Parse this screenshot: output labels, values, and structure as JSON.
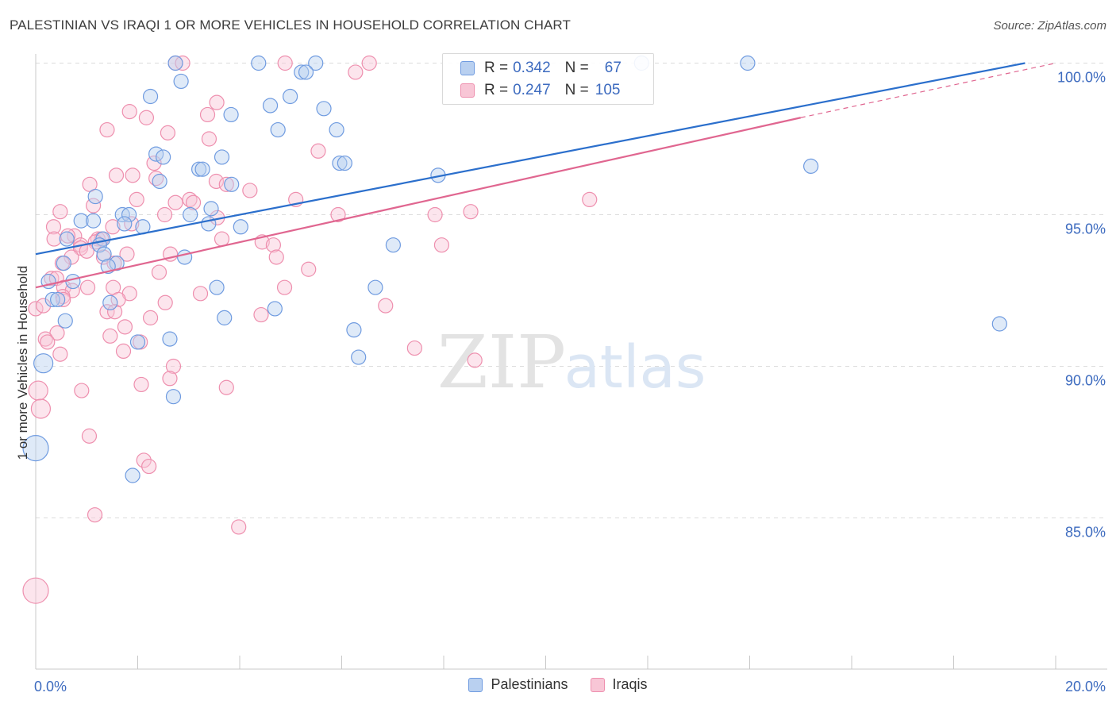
{
  "title": "PALESTINIAN VS IRAQI 1 OR MORE VEHICLES IN HOUSEHOLD CORRELATION CHART",
  "source": "Source: ZipAtlas.com",
  "watermark": {
    "zip": "ZIP",
    "atlas": "atlas"
  },
  "colors": {
    "blue_fill": "#b9d0f0",
    "blue_stroke": "#6f9be0",
    "blue_line": "#2b6fcc",
    "pink_fill": "#f8c6d6",
    "pink_stroke": "#ee8fae",
    "pink_line": "#e06690",
    "tick_label": "#3d6bbf",
    "grid": "#dcdcdc"
  },
  "legend": {
    "rows": [
      {
        "r_label": "R =",
        "r_value": "0.342",
        "n_label": "N =",
        "n_value": "67"
      },
      {
        "r_label": "R =",
        "r_value": "0.247",
        "n_label": "N =",
        "n_value": "105"
      }
    ]
  },
  "bottom_legend": {
    "series1": "Palestinians",
    "series2": "Iraqis"
  },
  "chart_data": {
    "type": "scatter",
    "title": "PALESTINIAN VS IRAQI 1 OR MORE VEHICLES IN HOUSEHOLD CORRELATION CHART",
    "xlabel": "",
    "ylabel": "1 or more Vehicles in Household",
    "xlim": [
      0,
      20
    ],
    "ylim": [
      80.5,
      100.6
    ],
    "x_tick_labels": [
      "0.0%",
      "20.0%"
    ],
    "y_ticks": [
      85,
      90,
      95,
      100
    ],
    "y_tick_labels": [
      "85.0%",
      "90.0%",
      "95.0%",
      "100.0%"
    ],
    "x_minor_ticks": [
      0,
      2,
      4,
      6,
      8,
      10,
      12,
      14,
      16,
      18,
      20
    ],
    "series": [
      {
        "name": "Palestinians",
        "color": "blue",
        "trend": {
          "x1": 0,
          "y1": 93.7,
          "x2": 19.4,
          "y2": 100.0
        },
        "points": [
          {
            "x": 2.74,
            "y": 100.0
          },
          {
            "x": 4.37,
            "y": 100.0
          },
          {
            "x": 5.49,
            "y": 100.0
          },
          {
            "x": 11.88,
            "y": 100.0
          },
          {
            "x": 13.96,
            "y": 100.0
          },
          {
            "x": 5.21,
            "y": 99.7
          },
          {
            "x": 5.3,
            "y": 99.7
          },
          {
            "x": 2.85,
            "y": 99.4
          },
          {
            "x": 2.25,
            "y": 98.9
          },
          {
            "x": 4.99,
            "y": 98.9
          },
          {
            "x": 4.6,
            "y": 98.6
          },
          {
            "x": 5.65,
            "y": 98.5
          },
          {
            "x": 3.83,
            "y": 98.3
          },
          {
            "x": 4.75,
            "y": 97.8
          },
          {
            "x": 5.9,
            "y": 97.8
          },
          {
            "x": 2.36,
            "y": 97.0
          },
          {
            "x": 2.5,
            "y": 96.9
          },
          {
            "x": 3.65,
            "y": 96.9
          },
          {
            "x": 5.96,
            "y": 96.7
          },
          {
            "x": 6.06,
            "y": 96.7
          },
          {
            "x": 3.2,
            "y": 96.5
          },
          {
            "x": 3.27,
            "y": 96.5
          },
          {
            "x": 15.2,
            "y": 96.6
          },
          {
            "x": 7.89,
            "y": 96.3
          },
          {
            "x": 2.43,
            "y": 96.1
          },
          {
            "x": 3.84,
            "y": 96.0
          },
          {
            "x": 1.17,
            "y": 95.6
          },
          {
            "x": 3.44,
            "y": 95.2
          },
          {
            "x": 1.7,
            "y": 95.0
          },
          {
            "x": 3.03,
            "y": 95.0
          },
          {
            "x": 1.83,
            "y": 95.0
          },
          {
            "x": 0.89,
            "y": 94.8
          },
          {
            "x": 1.13,
            "y": 94.8
          },
          {
            "x": 1.74,
            "y": 94.7
          },
          {
            "x": 2.1,
            "y": 94.6
          },
          {
            "x": 3.39,
            "y": 94.7
          },
          {
            "x": 4.02,
            "y": 94.6
          },
          {
            "x": 0.61,
            "y": 94.2
          },
          {
            "x": 1.32,
            "y": 94.2
          },
          {
            "x": 1.25,
            "y": 94.0
          },
          {
            "x": 7.01,
            "y": 94.0
          },
          {
            "x": 1.34,
            "y": 93.7
          },
          {
            "x": 2.92,
            "y": 93.6
          },
          {
            "x": 0.55,
            "y": 93.4
          },
          {
            "x": 1.59,
            "y": 93.4
          },
          {
            "x": 1.42,
            "y": 93.3
          },
          {
            "x": 0.73,
            "y": 92.8
          },
          {
            "x": 0.25,
            "y": 92.8
          },
          {
            "x": 3.55,
            "y": 92.6
          },
          {
            "x": 6.66,
            "y": 92.6
          },
          {
            "x": 0.33,
            "y": 92.2
          },
          {
            "x": 0.43,
            "y": 92.2
          },
          {
            "x": 1.46,
            "y": 92.1
          },
          {
            "x": 4.69,
            "y": 91.9
          },
          {
            "x": 3.7,
            "y": 91.6
          },
          {
            "x": 0.58,
            "y": 91.5
          },
          {
            "x": 18.9,
            "y": 91.4
          },
          {
            "x": 6.24,
            "y": 91.2
          },
          {
            "x": 2.63,
            "y": 90.9
          },
          {
            "x": 2.0,
            "y": 90.8
          },
          {
            "x": 6.33,
            "y": 90.3
          },
          {
            "x": 0.15,
            "y": 90.1
          },
          {
            "x": 2.7,
            "y": 89.0
          },
          {
            "x": 0.0,
            "y": 87.3
          },
          {
            "x": 1.9,
            "y": 86.4
          }
        ]
      },
      {
        "name": "Iraqis",
        "color": "pink",
        "trend": {
          "x1": 0,
          "y1": 92.6,
          "x2": 15.0,
          "y2": 98.2
        },
        "dashed_extension": {
          "x1": 15.0,
          "y1": 98.2,
          "x2": 20.0,
          "y2": 100.0
        },
        "points": [
          {
            "x": 2.74,
            "y": 100.0
          },
          {
            "x": 2.88,
            "y": 100.0
          },
          {
            "x": 4.89,
            "y": 100.0
          },
          {
            "x": 6.54,
            "y": 100.0
          },
          {
            "x": 6.27,
            "y": 99.7
          },
          {
            "x": 3.55,
            "y": 98.7
          },
          {
            "x": 1.84,
            "y": 98.4
          },
          {
            "x": 3.37,
            "y": 98.3
          },
          {
            "x": 2.17,
            "y": 98.2
          },
          {
            "x": 1.4,
            "y": 97.8
          },
          {
            "x": 2.59,
            "y": 97.7
          },
          {
            "x": 3.4,
            "y": 97.5
          },
          {
            "x": 5.54,
            "y": 97.1
          },
          {
            "x": 2.32,
            "y": 96.7
          },
          {
            "x": 1.58,
            "y": 96.3
          },
          {
            "x": 1.9,
            "y": 96.3
          },
          {
            "x": 2.36,
            "y": 96.2
          },
          {
            "x": 3.54,
            "y": 96.1
          },
          {
            "x": 3.74,
            "y": 96.0
          },
          {
            "x": 1.06,
            "y": 96.0
          },
          {
            "x": 4.2,
            "y": 95.8
          },
          {
            "x": 3.02,
            "y": 95.5
          },
          {
            "x": 3.09,
            "y": 95.4
          },
          {
            "x": 1.98,
            "y": 95.5
          },
          {
            "x": 5.1,
            "y": 95.5
          },
          {
            "x": 10.86,
            "y": 95.5
          },
          {
            "x": 2.74,
            "y": 95.4
          },
          {
            "x": 1.13,
            "y": 95.3
          },
          {
            "x": 0.48,
            "y": 95.1
          },
          {
            "x": 8.53,
            "y": 95.1
          },
          {
            "x": 2.53,
            "y": 95.0
          },
          {
            "x": 5.93,
            "y": 95.0
          },
          {
            "x": 7.83,
            "y": 95.0
          },
          {
            "x": 3.56,
            "y": 94.9
          },
          {
            "x": 0.35,
            "y": 94.6
          },
          {
            "x": 1.88,
            "y": 94.7
          },
          {
            "x": 1.51,
            "y": 94.6
          },
          {
            "x": 0.36,
            "y": 94.2
          },
          {
            "x": 1.22,
            "y": 94.2
          },
          {
            "x": 1.29,
            "y": 94.2
          },
          {
            "x": 0.76,
            "y": 94.3
          },
          {
            "x": 0.63,
            "y": 94.3
          },
          {
            "x": 1.17,
            "y": 94.1
          },
          {
            "x": 3.65,
            "y": 94.2
          },
          {
            "x": 4.44,
            "y": 94.1
          },
          {
            "x": 0.88,
            "y": 94.0
          },
          {
            "x": 4.66,
            "y": 94.0
          },
          {
            "x": 7.96,
            "y": 94.0
          },
          {
            "x": 0.88,
            "y": 93.9
          },
          {
            "x": 1.0,
            "y": 93.8
          },
          {
            "x": 2.64,
            "y": 93.7
          },
          {
            "x": 1.79,
            "y": 93.7
          },
          {
            "x": 1.33,
            "y": 93.6
          },
          {
            "x": 0.7,
            "y": 93.6
          },
          {
            "x": 4.72,
            "y": 93.6
          },
          {
            "x": 0.52,
            "y": 93.4
          },
          {
            "x": 1.54,
            "y": 93.4
          },
          {
            "x": 5.35,
            "y": 93.2
          },
          {
            "x": 2.42,
            "y": 93.1
          },
          {
            "x": 0.31,
            "y": 92.9
          },
          {
            "x": 0.41,
            "y": 92.9
          },
          {
            "x": 0.55,
            "y": 92.6
          },
          {
            "x": 1.02,
            "y": 92.6
          },
          {
            "x": 1.52,
            "y": 92.6
          },
          {
            "x": 4.88,
            "y": 92.6
          },
          {
            "x": 0.72,
            "y": 92.5
          },
          {
            "x": 1.84,
            "y": 92.4
          },
          {
            "x": 3.23,
            "y": 92.4
          },
          {
            "x": 0.53,
            "y": 92.3
          },
          {
            "x": 1.62,
            "y": 92.2
          },
          {
            "x": 0.54,
            "y": 92.2
          },
          {
            "x": 2.54,
            "y": 92.1
          },
          {
            "x": 0.0,
            "y": 91.9
          },
          {
            "x": 0.15,
            "y": 92.0
          },
          {
            "x": 6.86,
            "y": 92.0
          },
          {
            "x": 1.4,
            "y": 91.8
          },
          {
            "x": 1.55,
            "y": 91.8
          },
          {
            "x": 4.42,
            "y": 91.7
          },
          {
            "x": 2.25,
            "y": 91.6
          },
          {
            "x": 1.75,
            "y": 91.3
          },
          {
            "x": 0.42,
            "y": 91.1
          },
          {
            "x": 1.46,
            "y": 91.0
          },
          {
            "x": 0.19,
            "y": 90.9
          },
          {
            "x": 0.23,
            "y": 90.8
          },
          {
            "x": 2.05,
            "y": 90.8
          },
          {
            "x": 7.43,
            "y": 90.6
          },
          {
            "x": 1.72,
            "y": 90.5
          },
          {
            "x": 0.48,
            "y": 90.4
          },
          {
            "x": 8.61,
            "y": 90.2
          },
          {
            "x": 2.7,
            "y": 90.0
          },
          {
            "x": 2.63,
            "y": 89.6
          },
          {
            "x": 2.07,
            "y": 89.4
          },
          {
            "x": 3.74,
            "y": 89.3
          },
          {
            "x": 0.9,
            "y": 89.2
          },
          {
            "x": 0.05,
            "y": 89.2
          },
          {
            "x": 0.1,
            "y": 88.6
          },
          {
            "x": 1.05,
            "y": 87.7
          },
          {
            "x": 2.12,
            "y": 86.9
          },
          {
            "x": 2.22,
            "y": 86.7
          },
          {
            "x": 1.16,
            "y": 85.1
          },
          {
            "x": 3.98,
            "y": 84.7
          },
          {
            "x": 0.0,
            "y": 82.6
          }
        ]
      }
    ]
  }
}
